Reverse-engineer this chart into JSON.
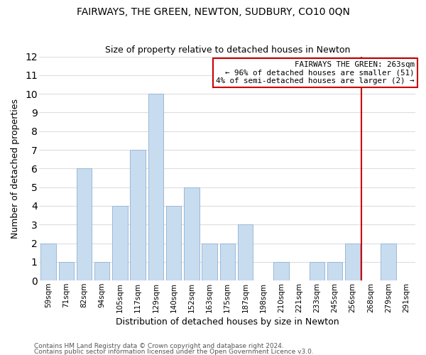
{
  "title": "FAIRWAYS, THE GREEN, NEWTON, SUDBURY, CO10 0QN",
  "subtitle": "Size of property relative to detached houses in Newton",
  "xlabel": "Distribution of detached houses by size in Newton",
  "ylabel": "Number of detached properties",
  "bar_labels": [
    "59sqm",
    "71sqm",
    "82sqm",
    "94sqm",
    "105sqm",
    "117sqm",
    "129sqm",
    "140sqm",
    "152sqm",
    "163sqm",
    "175sqm",
    "187sqm",
    "198sqm",
    "210sqm",
    "221sqm",
    "233sqm",
    "245sqm",
    "256sqm",
    "268sqm",
    "279sqm",
    "291sqm"
  ],
  "bar_values": [
    2,
    1,
    6,
    1,
    4,
    7,
    10,
    4,
    5,
    2,
    2,
    3,
    0,
    1,
    0,
    1,
    1,
    2,
    0,
    2,
    0
  ],
  "bar_color": "#c8dcf0",
  "bar_edgecolor": "#9ab8d8",
  "ylim": [
    0,
    12
  ],
  "yticks": [
    0,
    1,
    2,
    3,
    4,
    5,
    6,
    7,
    8,
    9,
    10,
    11,
    12
  ],
  "vline_x": 17.5,
  "vline_color": "#cc0000",
  "annotation_title": "FAIRWAYS THE GREEN: 263sqm",
  "annotation_line1": "← 96% of detached houses are smaller (51)",
  "annotation_line2": "4% of semi-detached houses are larger (2) →",
  "annotation_box_facecolor": "#ffffff",
  "annotation_box_edgecolor": "#cc0000",
  "footnote1": "Contains HM Land Registry data © Crown copyright and database right 2024.",
  "footnote2": "Contains public sector information licensed under the Open Government Licence v3.0.",
  "grid_color": "#dddddd",
  "bg_color": "#ffffff",
  "title_fontsize": 10,
  "subtitle_fontsize": 9
}
